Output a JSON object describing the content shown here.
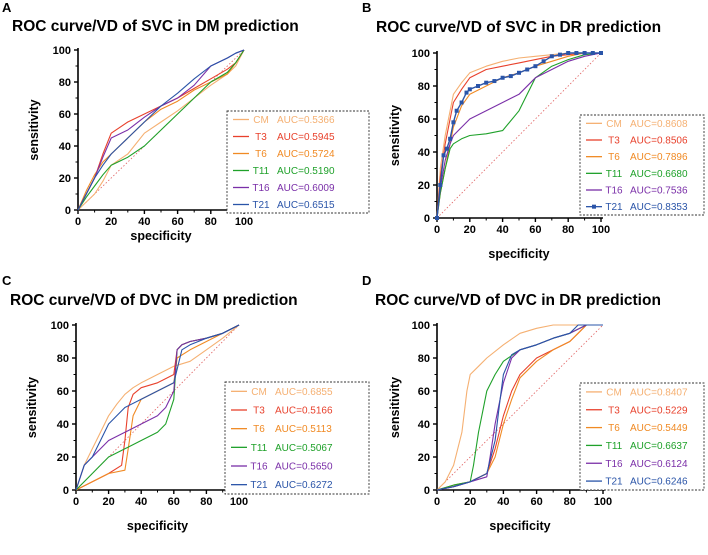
{
  "colors": {
    "CM": "#f5b072",
    "T3": "#e8412c",
    "T6": "#f08a24",
    "T11": "#1fa12a",
    "T16": "#7a2fa8",
    "T21": "#2a54a8",
    "reference": "#e06060"
  },
  "chart_data": [
    {
      "type": "line",
      "panel_letter": "A",
      "title": "ROC curve/VD of SVC in DM prediction",
      "xlabel": "specificity",
      "ylabel": "sensitivity",
      "xlim": [
        0,
        100
      ],
      "ylim": [
        0,
        100
      ],
      "xticks": [
        "0",
        "20",
        "40",
        "60",
        "80",
        "100"
      ],
      "yticks": [
        "0",
        "20",
        "40",
        "60",
        "80",
        "100"
      ],
      "reference_line": true,
      "legend": [
        {
          "name": "CM",
          "auc": "AUC=0.5366"
        },
        {
          "name": "T3",
          "auc": "AUC=0.5945"
        },
        {
          "name": "T6",
          "auc": "AUC=0.5724"
        },
        {
          "name": "T11",
          "auc": "AUC=0.5190"
        },
        {
          "name": "T16",
          "auc": "AUC=0.6009"
        },
        {
          "name": "T21",
          "auc": "AUC=0.6515"
        }
      ],
      "series": [
        {
          "name": "CM",
          "x": [
            0,
            5,
            10,
            15,
            20,
            30,
            40,
            50,
            60,
            70,
            80,
            90,
            95,
            100
          ],
          "y": [
            0,
            5,
            10,
            18,
            28,
            35,
            48,
            55,
            62,
            70,
            78,
            85,
            90,
            100
          ]
        },
        {
          "name": "T3",
          "x": [
            0,
            5,
            10,
            15,
            20,
            30,
            40,
            50,
            60,
            70,
            80,
            90,
            95,
            100
          ],
          "y": [
            0,
            10,
            20,
            35,
            48,
            55,
            60,
            65,
            70,
            76,
            82,
            88,
            92,
            100
          ]
        },
        {
          "name": "T6",
          "x": [
            0,
            5,
            10,
            15,
            20,
            30,
            40,
            50,
            60,
            70,
            80,
            90,
            95,
            100
          ],
          "y": [
            0,
            12,
            22,
            30,
            35,
            45,
            55,
            63,
            68,
            75,
            80,
            85,
            92,
            100
          ]
        },
        {
          "name": "T11",
          "x": [
            0,
            5,
            10,
            15,
            20,
            30,
            40,
            50,
            60,
            70,
            80,
            90,
            95,
            100
          ],
          "y": [
            0,
            8,
            15,
            22,
            28,
            33,
            40,
            50,
            60,
            70,
            80,
            86,
            92,
            100
          ]
        },
        {
          "name": "T16",
          "x": [
            0,
            5,
            10,
            15,
            20,
            30,
            40,
            50,
            60,
            70,
            80,
            90,
            95,
            100
          ],
          "y": [
            0,
            10,
            20,
            33,
            45,
            50,
            58,
            65,
            70,
            78,
            90,
            95,
            98,
            100
          ]
        },
        {
          "name": "T21",
          "x": [
            0,
            5,
            10,
            15,
            20,
            30,
            40,
            50,
            60,
            70,
            80,
            90,
            95,
            100
          ],
          "y": [
            0,
            10,
            20,
            28,
            35,
            45,
            55,
            65,
            73,
            82,
            90,
            95,
            98,
            100
          ]
        }
      ]
    },
    {
      "type": "line",
      "panel_letter": "B",
      "title": "ROC curve/VD of SVC in DR prediction",
      "xlabel": "specificity",
      "ylabel": "sensitivity",
      "xlim": [
        0,
        100
      ],
      "ylim": [
        0,
        100
      ],
      "xticks": [
        "0",
        "20",
        "40",
        "60",
        "80",
        "100"
      ],
      "yticks": [
        "0",
        "20",
        "40",
        "60",
        "80",
        "100"
      ],
      "reference_line": true,
      "legend": [
        {
          "name": "CM",
          "auc": "AUC=0.8608"
        },
        {
          "name": "T3",
          "auc": "AUC=0.8506"
        },
        {
          "name": "T6",
          "auc": "AUC=0.7896"
        },
        {
          "name": "T11",
          "auc": "AUC=0.6680"
        },
        {
          "name": "T16",
          "auc": "AUC=0.7536"
        },
        {
          "name": "T21",
          "auc": "AUC=0.8353"
        }
      ],
      "series": [
        {
          "name": "CM",
          "x": [
            0,
            2,
            5,
            8,
            10,
            15,
            20,
            30,
            40,
            50,
            60,
            70,
            80,
            90,
            100
          ],
          "y": [
            0,
            30,
            50,
            65,
            75,
            82,
            88,
            92,
            95,
            97,
            98,
            99,
            100,
            100,
            100
          ]
        },
        {
          "name": "T3",
          "x": [
            0,
            2,
            5,
            8,
            10,
            15,
            20,
            30,
            40,
            50,
            60,
            70,
            80,
            90,
            100
          ],
          "y": [
            0,
            25,
            45,
            60,
            70,
            78,
            85,
            90,
            92,
            94,
            96,
            98,
            99,
            100,
            100
          ]
        },
        {
          "name": "T6",
          "x": [
            0,
            2,
            5,
            8,
            10,
            15,
            20,
            30,
            40,
            50,
            60,
            70,
            80,
            90,
            100
          ],
          "y": [
            0,
            15,
            30,
            45,
            55,
            68,
            75,
            80,
            85,
            88,
            92,
            95,
            98,
            100,
            100
          ]
        },
        {
          "name": "T11",
          "x": [
            0,
            2,
            5,
            8,
            10,
            15,
            20,
            30,
            40,
            50,
            55,
            60,
            70,
            80,
            90,
            100
          ],
          "y": [
            0,
            15,
            30,
            42,
            45,
            48,
            50,
            51,
            53,
            65,
            75,
            85,
            92,
            96,
            99,
            100
          ]
        },
        {
          "name": "T16",
          "x": [
            0,
            2,
            5,
            8,
            10,
            15,
            20,
            30,
            40,
            50,
            60,
            70,
            80,
            90,
            100
          ],
          "y": [
            0,
            18,
            35,
            45,
            50,
            55,
            60,
            65,
            70,
            75,
            85,
            90,
            95,
            98,
            100
          ]
        },
        {
          "name": "T21",
          "markers": true,
          "x": [
            0,
            2,
            4,
            6,
            8,
            10,
            12,
            15,
            18,
            20,
            25,
            30,
            35,
            40,
            45,
            50,
            55,
            60,
            65,
            70,
            75,
            80,
            85,
            90,
            95,
            100
          ],
          "y": [
            0,
            20,
            38,
            42,
            48,
            58,
            65,
            70,
            76,
            78,
            80,
            82,
            83,
            85,
            86,
            88,
            90,
            92,
            95,
            98,
            99,
            100,
            100,
            100,
            100,
            100
          ]
        }
      ]
    },
    {
      "type": "line",
      "panel_letter": "C",
      "title": "ROC curve/VD of DVC in DM prediction",
      "xlabel": "specificity",
      "ylabel": "sensitivity",
      "xlim": [
        0,
        100
      ],
      "ylim": [
        0,
        100
      ],
      "xticks": [
        "0",
        "20",
        "40",
        "60",
        "80",
        "100"
      ],
      "yticks": [
        "0",
        "20",
        "40",
        "60",
        "80",
        "100"
      ],
      "reference_line": true,
      "legend": [
        {
          "name": "CM",
          "auc": "AUC=0.6855"
        },
        {
          "name": "T3",
          "auc": "AUC=0.5166"
        },
        {
          "name": "T6",
          "auc": "AUC=0.5113"
        },
        {
          "name": "T11",
          "auc": "AUC=0.5067"
        },
        {
          "name": "T16",
          "auc": "AUC=0.5650"
        },
        {
          "name": "T21",
          "auc": "AUC=0.6272"
        }
      ],
      "series": [
        {
          "name": "CM",
          "x": [
            0,
            5,
            10,
            15,
            20,
            25,
            30,
            35,
            40,
            50,
            60,
            70,
            80,
            90,
            100
          ],
          "y": [
            0,
            15,
            25,
            35,
            45,
            52,
            58,
            62,
            65,
            70,
            75,
            78,
            85,
            92,
            100
          ]
        },
        {
          "name": "T3",
          "x": [
            0,
            10,
            20,
            28,
            30,
            32,
            35,
            40,
            50,
            60,
            62,
            65,
            70,
            80,
            90,
            100
          ],
          "y": [
            0,
            5,
            10,
            15,
            30,
            50,
            58,
            62,
            65,
            70,
            85,
            88,
            90,
            92,
            95,
            100
          ]
        },
        {
          "name": "T6",
          "x": [
            0,
            10,
            20,
            30,
            32,
            35,
            40,
            50,
            60,
            62,
            70,
            80,
            90,
            100
          ],
          "y": [
            0,
            5,
            10,
            12,
            25,
            45,
            55,
            60,
            65,
            80,
            85,
            90,
            95,
            100
          ]
        },
        {
          "name": "T11",
          "x": [
            0,
            10,
            20,
            30,
            40,
            50,
            55,
            60,
            62,
            65,
            70,
            80,
            90,
            100
          ],
          "y": [
            0,
            10,
            20,
            25,
            30,
            35,
            40,
            55,
            85,
            88,
            90,
            92,
            95,
            100
          ]
        },
        {
          "name": "T16",
          "x": [
            0,
            5,
            10,
            20,
            30,
            40,
            50,
            55,
            60,
            62,
            65,
            70,
            80,
            90,
            100
          ],
          "y": [
            0,
            15,
            20,
            30,
            35,
            40,
            45,
            50,
            60,
            85,
            88,
            90,
            92,
            95,
            100
          ]
        },
        {
          "name": "T21",
          "x": [
            0,
            5,
            10,
            15,
            20,
            30,
            40,
            50,
            60,
            65,
            70,
            80,
            90,
            100
          ],
          "y": [
            0,
            15,
            20,
            30,
            40,
            50,
            55,
            60,
            65,
            85,
            88,
            92,
            95,
            100
          ]
        }
      ]
    },
    {
      "type": "line",
      "panel_letter": "D",
      "title": "ROC curve/VD of DVC in DR prediction",
      "xlabel": "specificity",
      "ylabel": "sensitivity",
      "xlim": [
        0,
        100
      ],
      "ylim": [
        0,
        100
      ],
      "xticks": [
        "0",
        "20",
        "40",
        "60",
        "80",
        "100"
      ],
      "yticks": [
        "0",
        "20",
        "40",
        "60",
        "80",
        "100"
      ],
      "reference_line": true,
      "legend": [
        {
          "name": "CM",
          "auc": "AUC=0.8407"
        },
        {
          "name": "T3",
          "auc": "AUC=0.5229"
        },
        {
          "name": "T6",
          "auc": "AUC=0.5449"
        },
        {
          "name": "T11",
          "auc": "AUC=0.6637"
        },
        {
          "name": "T16",
          "auc": "AUC=0.6124"
        },
        {
          "name": "T21",
          "auc": "AUC=0.6246"
        }
      ],
      "series": [
        {
          "name": "CM",
          "x": [
            0,
            5,
            10,
            15,
            18,
            20,
            25,
            30,
            40,
            50,
            60,
            70,
            80,
            90,
            100
          ],
          "y": [
            0,
            5,
            15,
            35,
            60,
            70,
            75,
            80,
            88,
            95,
            98,
            100,
            100,
            100,
            100
          ]
        },
        {
          "name": "T3",
          "x": [
            0,
            10,
            20,
            30,
            35,
            40,
            45,
            50,
            60,
            70,
            80,
            85,
            90,
            100
          ],
          "y": [
            0,
            2,
            5,
            10,
            25,
            45,
            60,
            70,
            80,
            85,
            90,
            95,
            100,
            100
          ]
        },
        {
          "name": "T6",
          "x": [
            0,
            10,
            20,
            30,
            35,
            40,
            45,
            50,
            60,
            70,
            80,
            85,
            90,
            100
          ],
          "y": [
            0,
            3,
            5,
            10,
            20,
            40,
            55,
            68,
            78,
            85,
            90,
            95,
            100,
            100
          ]
        },
        {
          "name": "T11",
          "x": [
            0,
            10,
            20,
            22,
            25,
            28,
            30,
            35,
            40,
            50,
            60,
            70,
            80,
            90,
            100
          ],
          "y": [
            0,
            3,
            5,
            15,
            35,
            50,
            60,
            70,
            78,
            85,
            88,
            92,
            95,
            100,
            100
          ]
        },
        {
          "name": "T16",
          "x": [
            0,
            10,
            20,
            30,
            32,
            35,
            40,
            45,
            50,
            60,
            70,
            80,
            90,
            100
          ],
          "y": [
            0,
            2,
            5,
            8,
            20,
            40,
            65,
            80,
            85,
            88,
            92,
            95,
            100,
            100
          ]
        },
        {
          "name": "T21",
          "x": [
            0,
            10,
            20,
            30,
            35,
            38,
            40,
            45,
            50,
            60,
            70,
            80,
            85,
            90,
            100
          ],
          "y": [
            0,
            2,
            5,
            10,
            30,
            55,
            70,
            82,
            85,
            88,
            92,
            95,
            100,
            100,
            100
          ]
        }
      ]
    }
  ]
}
